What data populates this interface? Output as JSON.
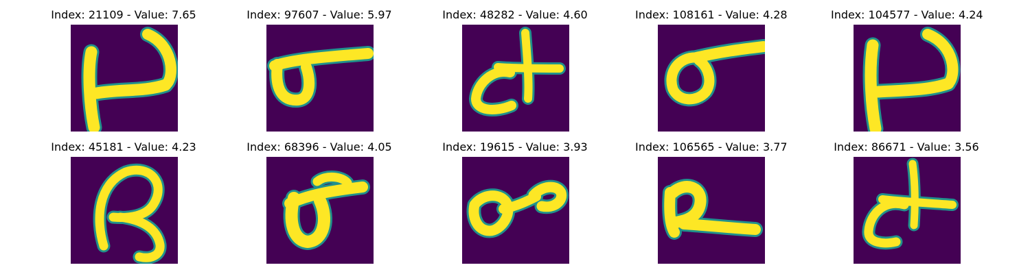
{
  "colors": {
    "background": "#440154",
    "stroke": "#fde725",
    "edge": "#21918c",
    "page": "#ffffff"
  },
  "panels": [
    {
      "title": "Index: 21109 - Value: 7.65",
      "index": 21109,
      "value": 7.65,
      "glyph": "glyph-21109"
    },
    {
      "title": "Index: 97607 - Value: 5.97",
      "index": 97607,
      "value": 5.97,
      "glyph": "glyph-97607"
    },
    {
      "title": "Index: 48282 - Value: 4.60",
      "index": 48282,
      "value": 4.6,
      "glyph": "glyph-48282"
    },
    {
      "title": "Index: 108161 - Value: 4.28",
      "index": 108161,
      "value": 4.28,
      "glyph": "glyph-108161"
    },
    {
      "title": "Index: 104577 - Value: 4.24",
      "index": 104577,
      "value": 4.24,
      "glyph": "glyph-104577"
    },
    {
      "title": "Index: 45181 - Value: 4.23",
      "index": 45181,
      "value": 4.23,
      "glyph": "glyph-45181"
    },
    {
      "title": "Index: 68396 - Value: 4.05",
      "index": 68396,
      "value": 4.05,
      "glyph": "glyph-68396"
    },
    {
      "title": "Index: 19615 - Value: 3.93",
      "index": 19615,
      "value": 3.93,
      "glyph": "glyph-19615"
    },
    {
      "title": "Index: 106565 - Value: 3.77",
      "index": 106565,
      "value": 3.77,
      "glyph": "glyph-106565"
    },
    {
      "title": "Index: 86671 - Value: 3.56",
      "index": 86671,
      "value": 3.56,
      "glyph": "glyph-86671"
    }
  ]
}
